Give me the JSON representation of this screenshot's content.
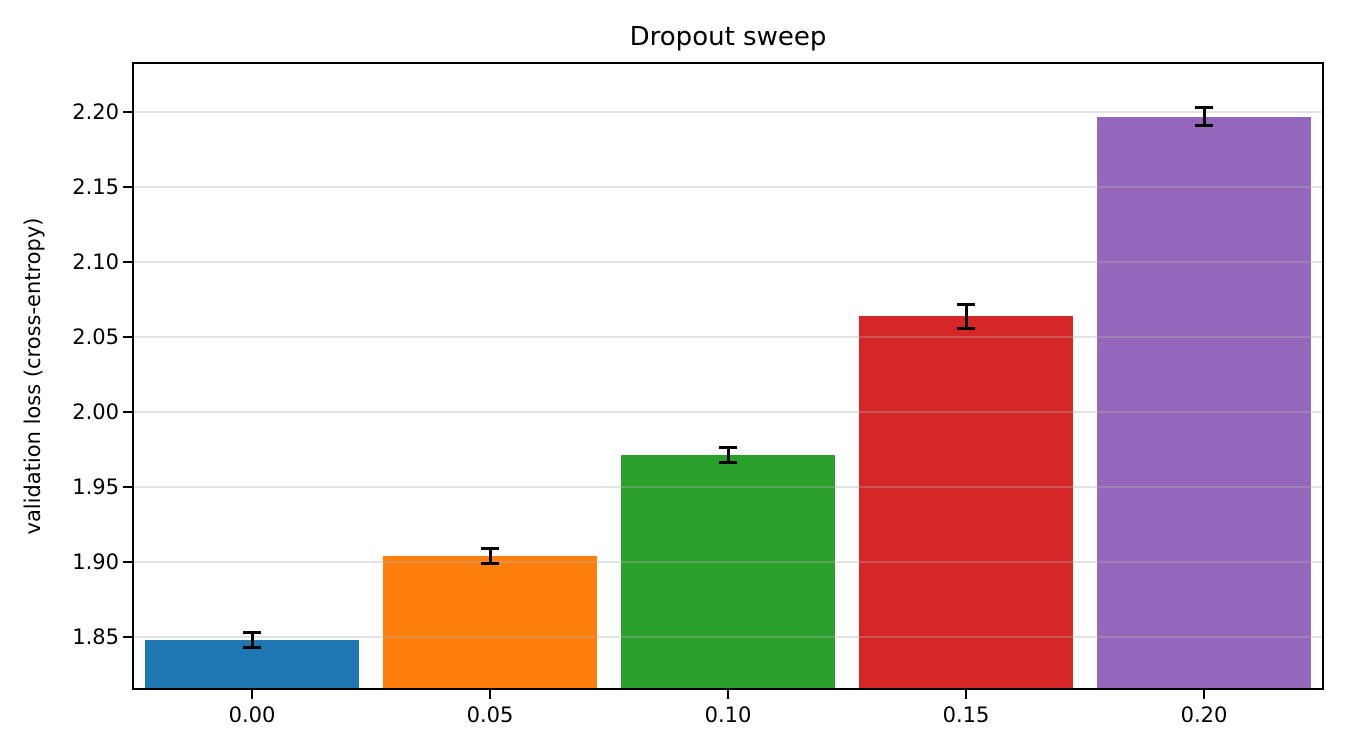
{
  "chart_data": {
    "type": "bar",
    "title": "Dropout sweep",
    "xlabel": "",
    "ylabel": "validation loss (cross-entropy)",
    "categories": [
      "0.00",
      "0.05",
      "0.10",
      "0.15",
      "0.20"
    ],
    "values": [
      1.848,
      1.904,
      1.971,
      2.064,
      2.197
    ],
    "errors": [
      0.005,
      0.005,
      0.005,
      0.008,
      0.006
    ],
    "bar_colors": [
      "#1f77b4",
      "#ff7f0e",
      "#2ca02c",
      "#d62728",
      "#9467bd"
    ],
    "ylim": [
      1.815,
      2.233
    ],
    "yticks": [
      1.85,
      1.9,
      1.95,
      2.0,
      2.05,
      2.1,
      2.15,
      2.2
    ],
    "ytick_labels": [
      "1.85",
      "1.90",
      "1.95",
      "2.00",
      "2.05",
      "2.10",
      "2.15",
      "2.20"
    ],
    "grid": "horizontal",
    "grid_color": "#b0b0b0",
    "legend": "none",
    "bar_width_fraction": 0.9,
    "error_color": "#000000",
    "background_color": "#ffffff"
  }
}
